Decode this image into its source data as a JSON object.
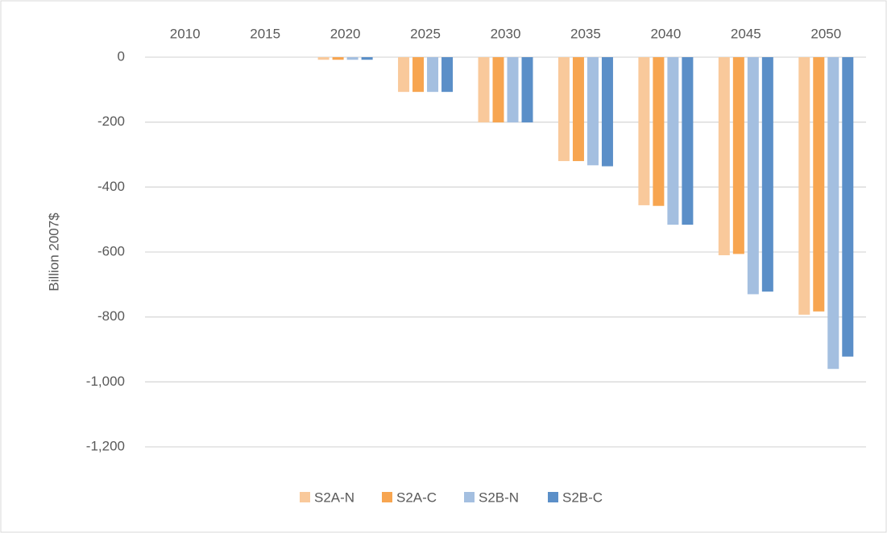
{
  "chart_data": {
    "type": "bar",
    "y_label": "Billion 2007$",
    "categories": [
      "2010",
      "2015",
      "2020",
      "2025",
      "2030",
      "2035",
      "2040",
      "2045",
      "2050"
    ],
    "series": [
      {
        "name": "S2A-N",
        "color": "#f9c99b",
        "values": [
          0,
          0,
          -8,
          -107,
          -201,
          -320,
          -456,
          -610,
          -793
        ]
      },
      {
        "name": "S2A-C",
        "color": "#f7a550",
        "values": [
          0,
          0,
          -8,
          -107,
          -201,
          -320,
          -458,
          -606,
          -783
        ]
      },
      {
        "name": "S2B-N",
        "color": "#a4bfe0",
        "values": [
          0,
          0,
          -8,
          -107,
          -201,
          -333,
          -516,
          -730,
          -960
        ]
      },
      {
        "name": "S2B-C",
        "color": "#5b8fc8",
        "values": [
          0,
          0,
          -8,
          -107,
          -201,
          -336,
          -516,
          -722,
          -922
        ]
      }
    ],
    "ylim": [
      -1200,
      0
    ],
    "yticks": [
      0,
      -200,
      -400,
      -600,
      -800,
      {
        "value": -1000,
        "label": "-1,000"
      },
      {
        "value": -1200,
        "label": "-1,200"
      }
    ],
    "grid": true
  }
}
